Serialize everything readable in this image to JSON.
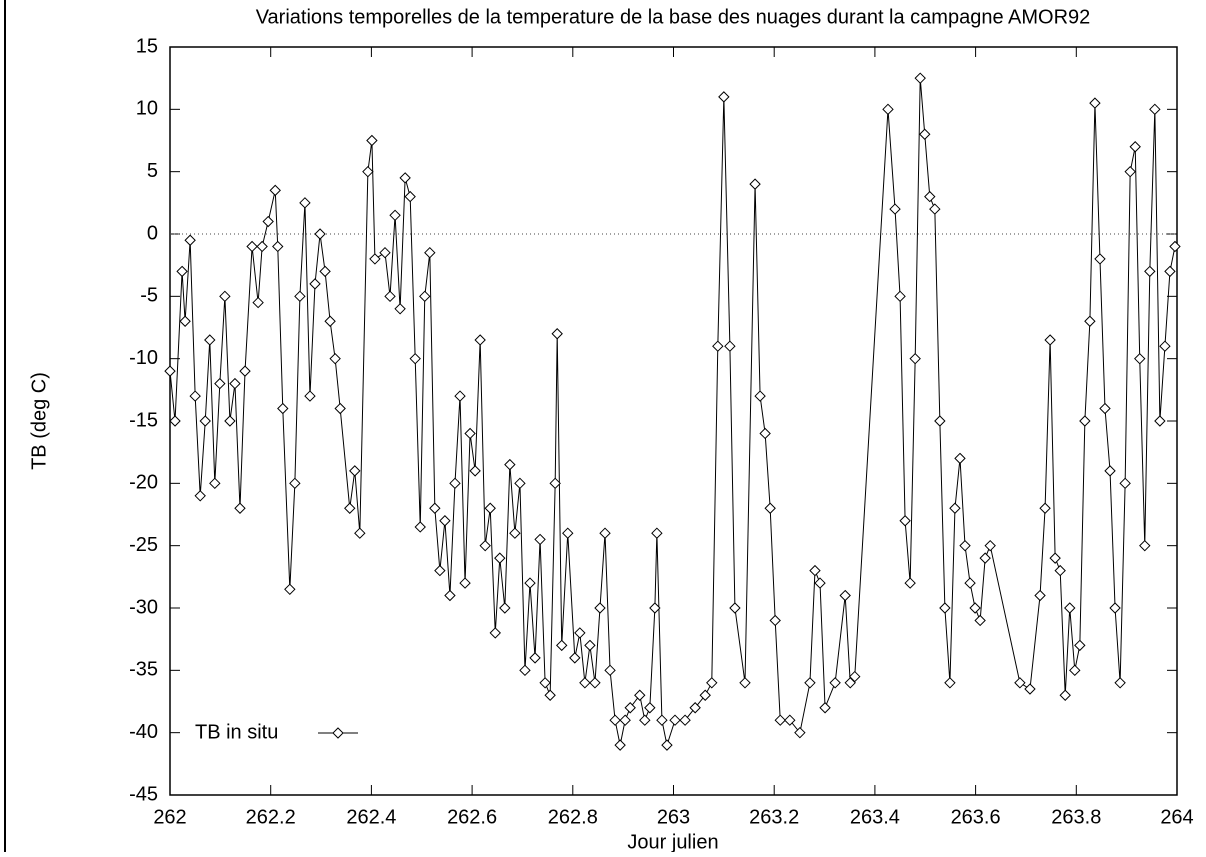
{
  "chart_data": {
    "type": "line",
    "title": "Variations temporelles de la temperature de la base des nuages durant la campagne AMOR92",
    "x_label": "Jour julien",
    "y_label": "TB (deg C)",
    "xlim": [
      262,
      264
    ],
    "ylim": [
      -45,
      15
    ],
    "xticks": [
      262,
      262.2,
      262.4,
      262.6,
      262.8,
      263,
      263.2,
      263.4,
      263.6,
      263.8,
      264
    ],
    "yticks": [
      -45,
      -40,
      -35,
      -30,
      -25,
      -20,
      -15,
      -10,
      -5,
      0,
      5,
      10,
      15
    ],
    "zero_line": true,
    "legend": "lower-left",
    "series": [
      {
        "name": "TB in situ",
        "color": "#000000",
        "marker": "diamond",
        "x": [
          262.0,
          262.01,
          262.024,
          262.03,
          262.04,
          262.05,
          262.06,
          262.07,
          262.079,
          262.089,
          262.099,
          262.109,
          262.119,
          262.129,
          262.139,
          262.149,
          262.163,
          262.175,
          262.183,
          262.195,
          262.209,
          262.214,
          262.224,
          262.238,
          262.248,
          262.258,
          262.268,
          262.278,
          262.288,
          262.298,
          262.308,
          262.318,
          262.328,
          262.338,
          262.357,
          262.367,
          262.377,
          262.393,
          262.401,
          262.407,
          262.427,
          262.437,
          262.447,
          262.457,
          262.467,
          262.477,
          262.487,
          262.497,
          262.506,
          262.516,
          262.526,
          262.536,
          262.546,
          262.556,
          262.566,
          262.576,
          262.586,
          262.596,
          262.606,
          262.616,
          262.626,
          262.636,
          262.646,
          262.655,
          262.665,
          262.675,
          262.685,
          262.695,
          262.705,
          262.715,
          262.725,
          262.735,
          262.745,
          262.755,
          262.765,
          262.769,
          262.778,
          262.79,
          262.804,
          262.814,
          262.824,
          262.834,
          262.844,
          262.854,
          262.864,
          262.874,
          262.884,
          262.894,
          262.904,
          262.914,
          262.933,
          262.943,
          262.953,
          262.963,
          262.967,
          262.977,
          262.987,
          263.003,
          263.023,
          263.043,
          263.063,
          263.076,
          263.088,
          263.1,
          263.112,
          263.122,
          263.142,
          263.162,
          263.172,
          263.182,
          263.192,
          263.202,
          263.212,
          263.231,
          263.251,
          263.271,
          263.281,
          263.291,
          263.301,
          263.321,
          263.341,
          263.351,
          263.36,
          263.426,
          263.44,
          263.45,
          263.46,
          263.47,
          263.48,
          263.49,
          263.499,
          263.509,
          263.519,
          263.529,
          263.539,
          263.549,
          263.559,
          263.569,
          263.579,
          263.589,
          263.599,
          263.609,
          263.619,
          263.629,
          263.688,
          263.708,
          263.728,
          263.738,
          263.748,
          263.758,
          263.768,
          263.778,
          263.787,
          263.797,
          263.807,
          263.817,
          263.827,
          263.837,
          263.847,
          263.857,
          263.867,
          263.877,
          263.887,
          263.897,
          263.907,
          263.917,
          263.926,
          263.936,
          263.946,
          263.956,
          263.966,
          263.976,
          263.986,
          263.996
        ],
        "values": [
          -11,
          -15,
          -3,
          -7,
          -0.5,
          -13,
          -21,
          -15,
          -8.5,
          -20,
          -12,
          -5,
          -15,
          -12,
          -22,
          -11,
          -1,
          -5.5,
          -1,
          1,
          3.5,
          -1,
          -14,
          -28.5,
          -20,
          -5,
          2.5,
          -13,
          -4,
          0,
          -3,
          -7,
          -10,
          -14,
          -22,
          -19,
          -24,
          5,
          7.5,
          -2,
          -1.5,
          -5,
          1.5,
          -6,
          4.5,
          3,
          -10,
          -23.5,
          -5,
          -1.5,
          -22,
          -27,
          -23,
          -29,
          -20,
          -13,
          -28,
          -16,
          -19,
          -8.5,
          -25,
          -22,
          -32,
          -26,
          -30,
          -18.5,
          -24,
          -20,
          -35,
          -28,
          -34,
          -24.5,
          -36,
          -37,
          -20,
          -8,
          -33,
          -24,
          -34,
          -32,
          -36,
          -33,
          -36,
          -30,
          -24,
          -35,
          -39,
          -41,
          -39,
          -38,
          -37,
          -39,
          -38,
          -30,
          -24,
          -39,
          -41,
          -39,
          -39,
          -38,
          -37,
          -36,
          -9,
          11,
          -9,
          -30,
          -36,
          4,
          -13,
          -16,
          -22,
          -31,
          -39,
          -39,
          -40,
          -36,
          -27,
          -28,
          -38,
          -36,
          -29,
          -36,
          -35.5,
          10,
          2,
          -5,
          -23,
          -28,
          -10,
          12.5,
          8,
          3,
          2,
          -15,
          -30,
          -36,
          -22,
          -18,
          -25,
          -28,
          -30,
          -31,
          -26,
          -25,
          -36,
          -36.5,
          -29,
          -22,
          -8.5,
          -26,
          -27,
          -37,
          -30,
          -35,
          -33,
          -15,
          -7,
          10.5,
          -2,
          -14,
          -19,
          -30,
          -36,
          -20,
          5,
          7,
          -10,
          -25,
          -3,
          10,
          -15,
          -9,
          -3,
          -1
        ]
      }
    ]
  }
}
